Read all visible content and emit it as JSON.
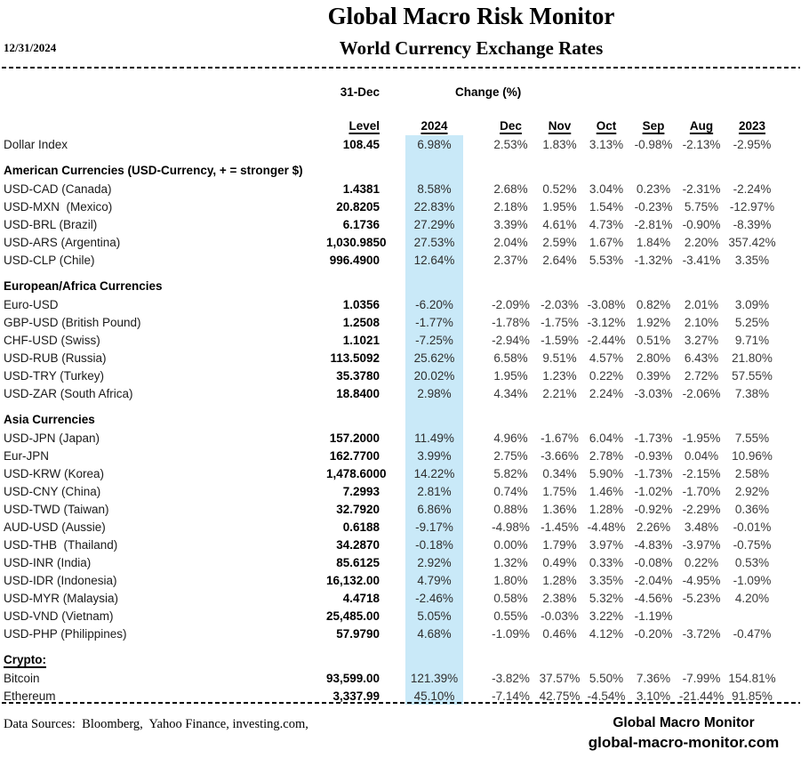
{
  "report": {
    "date": "12/31/2024",
    "title": "Global Macro Risk Monitor",
    "subtitle": "World Currency Exchange Rates"
  },
  "table": {
    "highlight_color": "#c9e9f8",
    "group_headers": {
      "as_of": "31-Dec",
      "change": "Change (%)"
    },
    "columns": [
      "Level",
      "2024",
      "Dec",
      "Nov",
      "Oct",
      "Sep",
      "Aug",
      "2023"
    ],
    "rows": [
      {
        "type": "data",
        "label": "Dollar Index",
        "level": "108.45",
        "ytd": "6.98%",
        "changes": [
          "2.53%",
          "1.83%",
          "3.13%",
          "-0.98%",
          "-2.13%"
        ],
        "y2023": "-2.95%"
      },
      {
        "type": "section",
        "label": "American Currencies (USD-Currency, + = stronger $)",
        "underline": false
      },
      {
        "type": "data",
        "label": "USD-CAD (Canada)",
        "level": "1.4381",
        "ytd": "8.58%",
        "changes": [
          "2.68%",
          "0.52%",
          "3.04%",
          "0.23%",
          "-2.31%"
        ],
        "y2023": "-2.24%"
      },
      {
        "type": "data",
        "label": "USD-MXN  (Mexico)",
        "level": "20.8205",
        "ytd": "22.83%",
        "changes": [
          "2.18%",
          "1.95%",
          "1.54%",
          "-0.23%",
          "5.75%"
        ],
        "y2023": "-12.97%"
      },
      {
        "type": "data",
        "label": "USD-BRL (Brazil)",
        "level": "6.1736",
        "ytd": "27.29%",
        "changes": [
          "3.39%",
          "4.61%",
          "4.73%",
          "-2.81%",
          "-0.90%"
        ],
        "y2023": "-8.39%"
      },
      {
        "type": "data",
        "label": "USD-ARS (Argentina)",
        "level": "1,030.9850",
        "ytd": "27.53%",
        "changes": [
          "2.04%",
          "2.59%",
          "1.67%",
          "1.84%",
          "2.20%"
        ],
        "y2023": "357.42%"
      },
      {
        "type": "data",
        "label": "USD-CLP (Chile)",
        "level": "996.4900",
        "ytd": "12.64%",
        "changes": [
          "2.37%",
          "2.64%",
          "5.53%",
          "-1.32%",
          "-3.41%"
        ],
        "y2023": "3.35%"
      },
      {
        "type": "section",
        "label": "European/Africa Currencies",
        "underline": false
      },
      {
        "type": "data",
        "label": "Euro-USD",
        "level": "1.0356",
        "ytd": "-6.20%",
        "changes": [
          "-2.09%",
          "-2.03%",
          "-3.08%",
          "0.82%",
          "2.01%"
        ],
        "y2023": "3.09%"
      },
      {
        "type": "data",
        "label": "GBP-USD (British Pound)",
        "level": "1.2508",
        "ytd": "-1.77%",
        "changes": [
          "-1.78%",
          "-1.75%",
          "-3.12%",
          "1.92%",
          "2.10%"
        ],
        "y2023": "5.25%"
      },
      {
        "type": "data",
        "label": "CHF-USD (Swiss)",
        "level": "1.1021",
        "ytd": "-7.25%",
        "changes": [
          "-2.94%",
          "-1.59%",
          "-2.44%",
          "0.51%",
          "3.27%"
        ],
        "y2023": "9.71%"
      },
      {
        "type": "data",
        "label": "USD-RUB (Russia)",
        "level": "113.5092",
        "ytd": "25.62%",
        "changes": [
          "6.58%",
          "9.51%",
          "4.57%",
          "2.80%",
          "6.43%"
        ],
        "y2023": "21.80%"
      },
      {
        "type": "data",
        "label": "USD-TRY (Turkey)",
        "level": "35.3780",
        "ytd": "20.02%",
        "changes": [
          "1.95%",
          "1.23%",
          "0.22%",
          "0.39%",
          "2.72%"
        ],
        "y2023": "57.55%"
      },
      {
        "type": "data",
        "label": "USD-ZAR (South Africa)",
        "level": "18.8400",
        "ytd": "2.98%",
        "changes": [
          "4.34%",
          "2.21%",
          "2.24%",
          "-3.03%",
          "-2.06%"
        ],
        "y2023": "7.38%"
      },
      {
        "type": "section",
        "label": "Asia Currencies",
        "underline": false
      },
      {
        "type": "data",
        "label": "USD-JPN (Japan)",
        "level": "157.2000",
        "ytd": "11.49%",
        "changes": [
          "4.96%",
          "-1.67%",
          "6.04%",
          "-1.73%",
          "-1.95%"
        ],
        "y2023": "7.55%"
      },
      {
        "type": "data",
        "label": "Eur-JPN",
        "level": "162.7700",
        "ytd": "3.99%",
        "changes": [
          "2.75%",
          "-3.66%",
          "2.78%",
          "-0.93%",
          "0.04%"
        ],
        "y2023": "10.96%"
      },
      {
        "type": "data",
        "label": "USD-KRW (Korea)",
        "level": "1,478.6000",
        "ytd": "14.22%",
        "changes": [
          "5.82%",
          "0.34%",
          "5.90%",
          "-1.73%",
          "-2.15%"
        ],
        "y2023": "2.58%"
      },
      {
        "type": "data",
        "label": "USD-CNY (China)",
        "level": "7.2993",
        "ytd": "2.81%",
        "changes": [
          "0.74%",
          "1.75%",
          "1.46%",
          "-1.02%",
          "-1.70%"
        ],
        "y2023": "2.92%"
      },
      {
        "type": "data",
        "label": "USD-TWD (Taiwan)",
        "level": "32.7920",
        "ytd": "6.86%",
        "changes": [
          "0.88%",
          "1.36%",
          "1.28%",
          "-0.92%",
          "-2.29%"
        ],
        "y2023": "0.36%"
      },
      {
        "type": "data",
        "label": "AUD-USD (Aussie)",
        "level": "0.6188",
        "ytd": "-9.17%",
        "changes": [
          "-4.98%",
          "-1.45%",
          "-4.48%",
          "2.26%",
          "3.48%"
        ],
        "y2023": "-0.01%"
      },
      {
        "type": "data",
        "label": "USD-THB  (Thailand)",
        "level": "34.2870",
        "ytd": "-0.18%",
        "changes": [
          "0.00%",
          "1.79%",
          "3.97%",
          "-4.83%",
          "-3.97%"
        ],
        "y2023": "-0.75%"
      },
      {
        "type": "data",
        "label": "USD-INR (India)",
        "level": "85.6125",
        "ytd": "2.92%",
        "changes": [
          "1.32%",
          "0.49%",
          "0.33%",
          "-0.08%",
          "0.22%"
        ],
        "y2023": "0.53%"
      },
      {
        "type": "data",
        "label": "USD-IDR (Indonesia)",
        "level": "16,132.00",
        "ytd": "4.79%",
        "changes": [
          "1.80%",
          "1.28%",
          "3.35%",
          "-2.04%",
          "-4.95%"
        ],
        "y2023": "-1.09%"
      },
      {
        "type": "data",
        "label": "USD-MYR (Malaysia)",
        "level": "4.4718",
        "ytd": "-2.46%",
        "changes": [
          "0.58%",
          "2.38%",
          "5.32%",
          "-4.56%",
          "-5.23%"
        ],
        "y2023": "4.20%"
      },
      {
        "type": "data",
        "label": "USD-VND (Vietnam)",
        "level": "25,485.00",
        "ytd": "5.05%",
        "changes": [
          "0.55%",
          "-0.03%",
          "3.22%",
          "-1.19%",
          ""
        ],
        "y2023": ""
      },
      {
        "type": "data",
        "label": "USD-PHP (Philippines)",
        "level": "57.9790",
        "ytd": "4.68%",
        "changes": [
          "-1.09%",
          "0.46%",
          "4.12%",
          "-0.20%",
          "-3.72%"
        ],
        "y2023": "-0.47%"
      },
      {
        "type": "section",
        "label": "Crypto:",
        "underline": true
      },
      {
        "type": "data",
        "label": "Bitcoin",
        "level": "93,599.00",
        "ytd": "121.39%",
        "changes": [
          "-3.82%",
          "37.57%",
          "5.50%",
          "7.36%",
          "-7.99%"
        ],
        "y2023": "154.81%"
      },
      {
        "type": "data",
        "label": "Ethereum",
        "level": "3,337.99",
        "ytd": "45.10%",
        "changes": [
          "-7.14%",
          "42.75%",
          "-4.54%",
          "3.10%",
          "-21.44%"
        ],
        "y2023": "91.85%"
      }
    ]
  },
  "footer": {
    "sources": "Data Sources:  Bloomberg,  Yahoo Finance, investing.com,",
    "brand": "Global Macro Monitor",
    "website": "global-macro-monitor.com"
  }
}
